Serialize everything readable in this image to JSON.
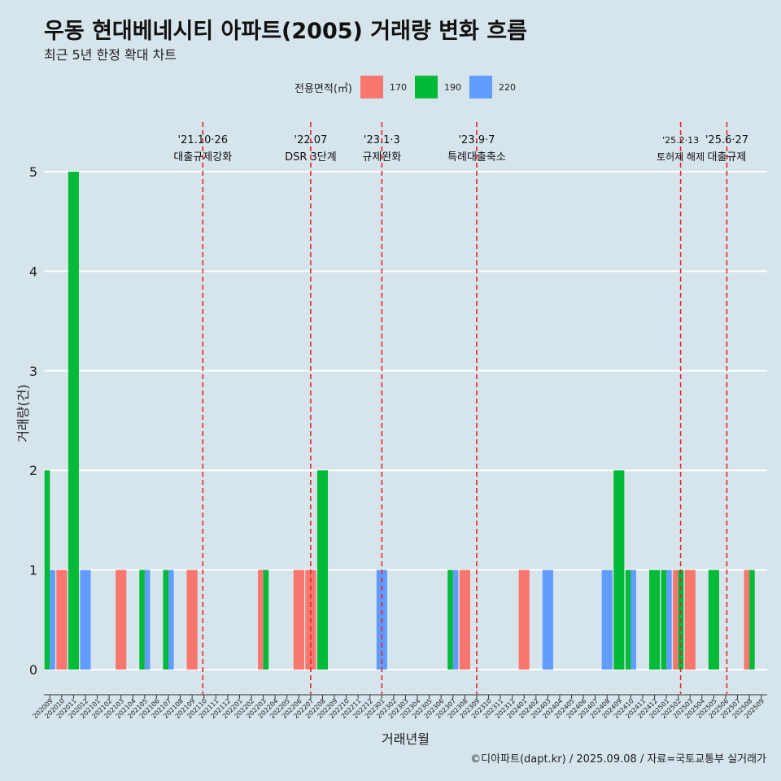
{
  "title": "우동 현대베네시티 아파트(2005) 거래량 변화 흐름",
  "subtitle": "최근 5년 한정 확대 차트",
  "legend": {
    "title": "전용면적(㎡)",
    "items": [
      {
        "label": "170",
        "color": "#F8766D"
      },
      {
        "label": "190",
        "color": "#00BA38"
      },
      {
        "label": "220",
        "color": "#619CFF"
      }
    ]
  },
  "caption": "©디아파트(dapt.kr) / 2025.09.08 / 자료=국토교통부 실거래가",
  "chart_data": {
    "type": "bar",
    "xlabel": "거래년월",
    "ylabel": "거래량(건)",
    "ylim": [
      0,
      5
    ],
    "yticks": [
      0,
      1,
      2,
      3,
      4,
      5
    ],
    "grid": true,
    "legend_position": "top",
    "categories": [
      "202009",
      "202010",
      "202011",
      "202012",
      "202101",
      "202102",
      "202103",
      "202104",
      "202105",
      "202106",
      "202107",
      "202108",
      "202109",
      "202110",
      "202111",
      "202112",
      "202201",
      "202202",
      "202203",
      "202204",
      "202205",
      "202206",
      "202207",
      "202208",
      "202209",
      "202210",
      "202211",
      "202212",
      "202301",
      "202302",
      "202303",
      "202304",
      "202305",
      "202306",
      "202307",
      "202308",
      "202309",
      "202310",
      "202311",
      "202312",
      "202401",
      "202402",
      "202403",
      "202404",
      "202405",
      "202406",
      "202407",
      "202408",
      "202409",
      "202410",
      "202411",
      "202412",
      "202501",
      "202502",
      "202503",
      "202504",
      "202505",
      "202506",
      "202507",
      "202508",
      "202509"
    ],
    "series": [
      {
        "name": "170",
        "color": "#F8766D",
        "values": [
          0,
          1,
          0,
          0,
          0,
          0,
          1,
          0,
          0,
          0,
          0,
          0,
          1,
          0,
          0,
          0,
          0,
          0,
          1,
          0,
          0,
          1,
          1,
          0,
          0,
          0,
          0,
          0,
          0,
          0,
          0,
          0,
          0,
          0,
          0,
          1,
          0,
          0,
          0,
          0,
          1,
          0,
          0,
          0,
          0,
          0,
          0,
          0,
          0,
          0,
          0,
          0,
          0,
          1,
          1,
          0,
          0,
          0,
          0,
          1,
          0
        ]
      },
      {
        "name": "190",
        "color": "#00BA38",
        "values": [
          2,
          0,
          5,
          0,
          0,
          0,
          0,
          0,
          1,
          0,
          1,
          0,
          0,
          0,
          0,
          0,
          0,
          0,
          1,
          0,
          0,
          0,
          0,
          2,
          0,
          0,
          0,
          0,
          0,
          0,
          0,
          0,
          0,
          0,
          1,
          0,
          0,
          0,
          0,
          0,
          0,
          0,
          0,
          0,
          0,
          0,
          0,
          0,
          2,
          1,
          0,
          1,
          1,
          1,
          0,
          0,
          1,
          0,
          0,
          1,
          0
        ]
      },
      {
        "name": "220",
        "color": "#619CFF",
        "values": [
          1,
          0,
          0,
          1,
          0,
          0,
          0,
          0,
          1,
          0,
          1,
          0,
          0,
          0,
          0,
          0,
          0,
          0,
          0,
          0,
          0,
          0,
          0,
          0,
          0,
          0,
          0,
          0,
          1,
          0,
          0,
          0,
          0,
          0,
          1,
          0,
          0,
          0,
          0,
          0,
          0,
          0,
          1,
          0,
          0,
          0,
          0,
          1,
          0,
          1,
          0,
          0,
          1,
          0,
          0,
          0,
          0,
          0,
          0,
          0,
          0
        ]
      }
    ],
    "annotations": [
      {
        "date": "'21.10·26",
        "label": "대출규제강화",
        "at": "202110",
        "offset": -0.1
      },
      {
        "date": "'22.07",
        "label": "DSR 3단계",
        "at": "202207",
        "offset": 0
      },
      {
        "date": "'23.1·3",
        "label": "규제완화",
        "at": "202301",
        "offset": 0
      },
      {
        "date": "'23.9·7",
        "label": "특례대출축소",
        "at": "202309",
        "offset": 0
      },
      {
        "date": "'25.2·13",
        "label": "토허제 해제",
        "at": "202502",
        "offset": 0.2
      },
      {
        "date": "'25.6·27",
        "label": "대출규제",
        "at": "202506",
        "offset": 0.1
      }
    ]
  }
}
